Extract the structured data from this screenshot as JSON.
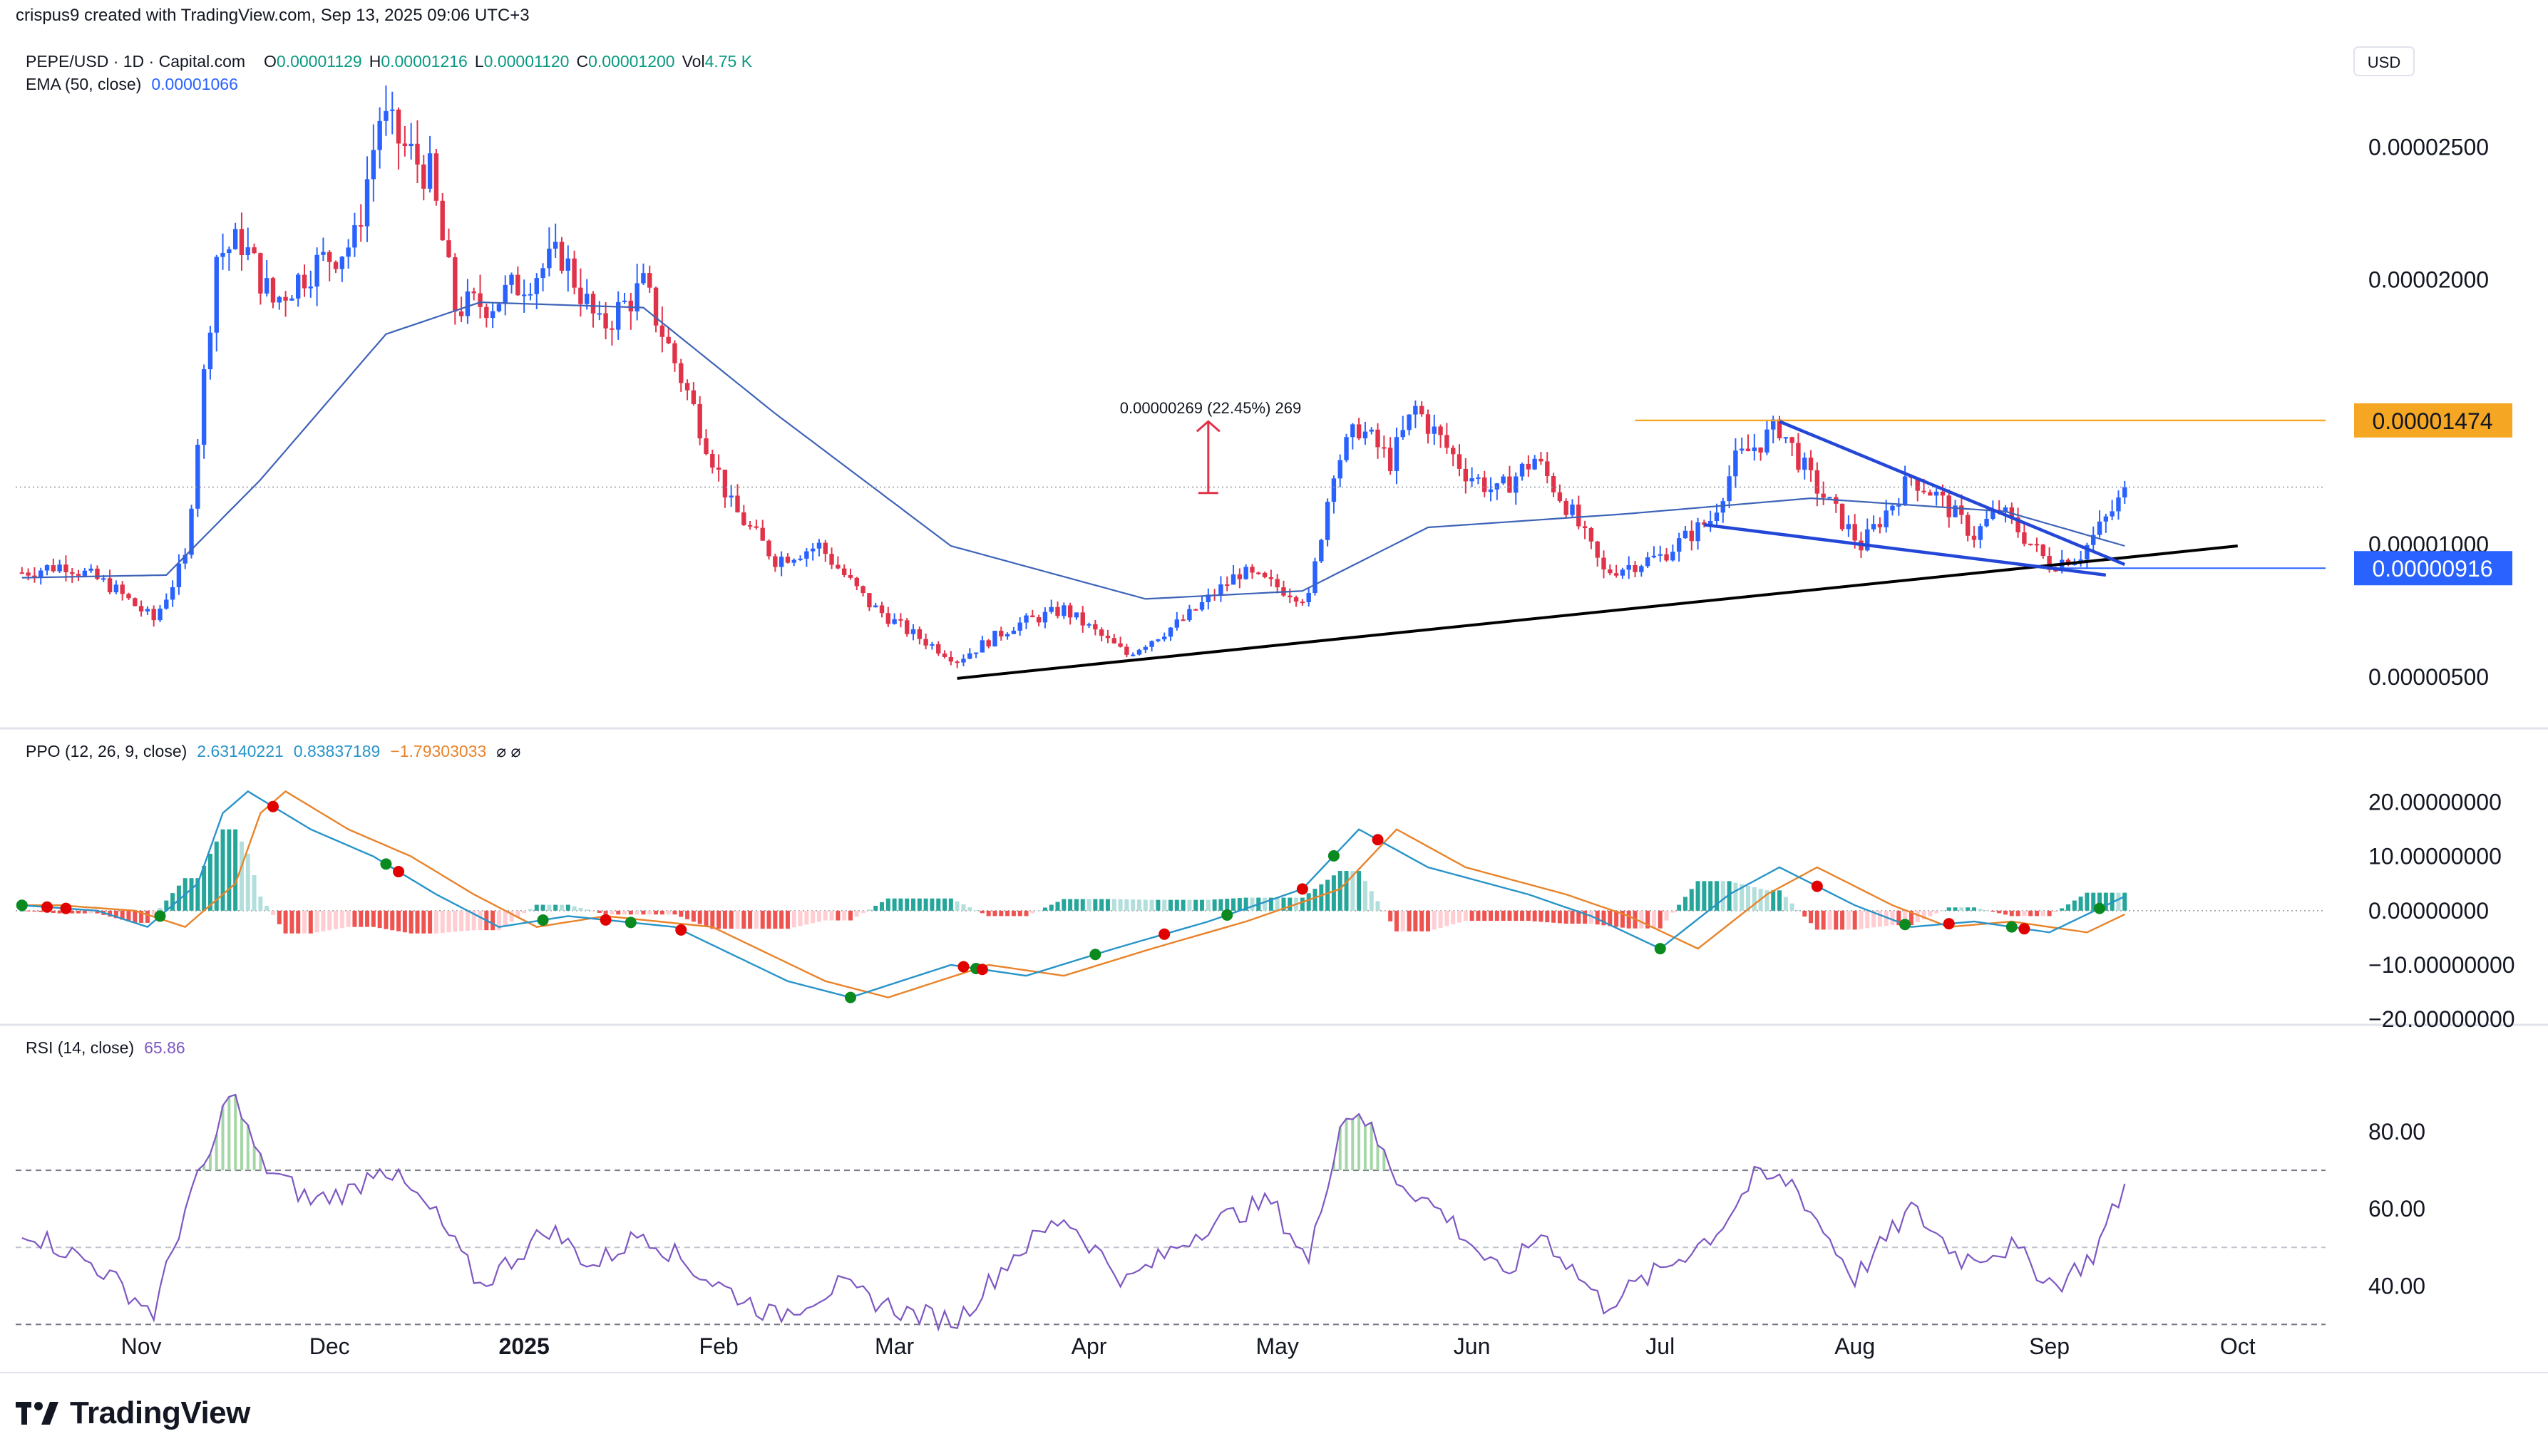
{
  "header": {
    "created_by": "crispus9 created with TradingView.com, Sep 13, 2025 09:06 UTC+3"
  },
  "symbol": {
    "name": "PEPE/USD · 1D · Capital.com",
    "o_label": "O",
    "o": "0.00001129",
    "h_label": "H",
    "h": "0.00001216",
    "l_label": "L",
    "l": "0.00001120",
    "c_label": "C",
    "c": "0.00001200",
    "vol_label": "Vol",
    "vol": "4.75 K"
  },
  "ema": {
    "label": "EMA (50, close)",
    "value": "0.00001066"
  },
  "currency": "USD",
  "price_axis": {
    "ticks": [
      "0.00002500",
      "0.00002000",
      "0.00001000",
      "0.00000500"
    ],
    "tick_values": [
      2.5e-05,
      2e-05,
      1e-05,
      5e-06
    ],
    "badge_resistance": "0.00001474",
    "badge_support": "0.00000916"
  },
  "measure": {
    "label": "0.00000269 (22.45%) 269"
  },
  "ppo": {
    "label": "PPO (12, 26, 9, close)",
    "v1": "2.63140221",
    "v2": "0.83837189",
    "v3": "−1.79303033",
    "ticks": [
      "20.00000000",
      "10.00000000",
      "0.00000000",
      "−10.00000000",
      "−20.00000000"
    ]
  },
  "rsi": {
    "label": "RSI (14, close)",
    "value": "65.86",
    "ticks": [
      "80.00",
      "60.00",
      "40.00"
    ]
  },
  "time_axis": [
    "Nov",
    "Dec",
    "2025",
    "Feb",
    "Mar",
    "Apr",
    "May",
    "Jun",
    "Jul",
    "Aug",
    "Sep",
    "Oct"
  ],
  "brand": "TradingView",
  "colors": {
    "up": "#2962ff",
    "down": "#e0334a",
    "ema": "#3d63b8",
    "ppo_line": "#2894c8",
    "signal": "#e8832a",
    "rsi": "#7e57c2",
    "resistance": "#f5a623",
    "support_badge": "#2962ff"
  },
  "chart_data": {
    "type": "candlestick",
    "title": "PEPE/USD · 1D · Capital.com",
    "anchors": [
      [
        "2024-10-13",
        9e-06
      ],
      [
        "2024-10-20",
        9.3e-06
      ],
      [
        "2024-10-27",
        8.5e-06
      ],
      [
        "2024-11-03",
        7.2e-06
      ],
      [
        "2024-11-08",
        9.5e-06
      ],
      [
        "2024-11-13",
        2.1e-05
      ],
      [
        "2024-11-17",
        2.15e-05
      ],
      [
        "2024-11-22",
        1.92e-05
      ],
      [
        "2024-11-28",
        2.05e-05
      ],
      [
        "2024-12-05",
        2.15e-05
      ],
      [
        "2024-12-09",
        2.62e-05
      ],
      [
        "2024-12-13",
        2.5e-05
      ],
      [
        "2024-12-17",
        2.4e-05
      ],
      [
        "2024-12-21",
        1.9e-05
      ],
      [
        "2024-12-27",
        1.92e-05
      ],
      [
        "2025-01-04",
        2.05e-05
      ],
      [
        "2025-01-07",
        2.1e-05
      ],
      [
        "2025-01-13",
        1.82e-05
      ],
      [
        "2025-01-20",
        1.98e-05
      ],
      [
        "2025-01-27",
        1.58e-05
      ],
      [
        "2025-02-03",
        1.15e-05
      ],
      [
        "2025-02-10",
        9.5e-06
      ],
      [
        "2025-02-17",
        1e-05
      ],
      [
        "2025-02-25",
        7.8e-06
      ],
      [
        "2025-03-03",
        6.8e-06
      ],
      [
        "2025-03-11",
        5.7e-06
      ],
      [
        "2025-03-20",
        7e-06
      ],
      [
        "2025-03-28",
        7.6e-06
      ],
      [
        "2025-04-07",
        5.9e-06
      ],
      [
        "2025-04-16",
        7.2e-06
      ],
      [
        "2025-04-25",
        9e-06
      ],
      [
        "2025-05-06",
        8e-06
      ],
      [
        "2025-05-10",
        1.3e-05
      ],
      [
        "2025-05-14",
        1.45e-05
      ],
      [
        "2025-05-19",
        1.32e-05
      ],
      [
        "2025-05-23",
        1.52e-05
      ],
      [
        "2025-05-31",
        1.28e-05
      ],
      [
        "2025-06-05",
        1.2e-05
      ],
      [
        "2025-06-11",
        1.33e-05
      ],
      [
        "2025-06-17",
        1.12e-05
      ],
      [
        "2025-06-22",
        9e-06
      ],
      [
        "2025-07-01",
        9.6e-06
      ],
      [
        "2025-07-09",
        1.1e-05
      ],
      [
        "2025-07-13",
        1.32e-05
      ],
      [
        "2025-07-20",
        1.45e-05
      ],
      [
        "2025-07-25",
        1.25e-05
      ],
      [
        "2025-08-02",
        1e-05
      ],
      [
        "2025-08-10",
        1.26e-05
      ],
      [
        "2025-08-14",
        1.19e-05
      ],
      [
        "2025-08-20",
        1.04e-05
      ],
      [
        "2025-08-24",
        1.14e-05
      ],
      [
        "2025-09-01",
        9.3e-06
      ],
      [
        "2025-09-06",
        9.7e-06
      ],
      [
        "2025-09-10",
        1.1e-05
      ],
      [
        "2025-09-13",
        1.2e-05
      ]
    ],
    "ema_anchors": [
      [
        "2024-10-13",
        8.8e-06
      ],
      [
        "2024-11-05",
        8.9e-06
      ],
      [
        "2024-11-20",
        1.25e-05
      ],
      [
        "2024-12-10",
        1.8e-05
      ],
      [
        "2024-12-25",
        1.92e-05
      ],
      [
        "2025-01-20",
        1.9e-05
      ],
      [
        "2025-02-10",
        1.5e-05
      ],
      [
        "2025-03-10",
        1e-05
      ],
      [
        "2025-04-10",
        8e-06
      ],
      [
        "2025-05-05",
        8.3e-06
      ],
      [
        "2025-05-25",
        1.07e-05
      ],
      [
        "2025-06-25",
        1.12e-05
      ],
      [
        "2025-07-25",
        1.18e-05
      ],
      [
        "2025-08-25",
        1.13e-05
      ],
      [
        "2025-09-13",
        1e-05
      ]
    ],
    "resistance_level": 1.474e-05,
    "support_level": 9.16e-06,
    "trendline": [
      [
        "2025-03-11",
        5e-06
      ],
      [
        "2025-10-01",
        1e-05
      ]
    ],
    "wedge_upper": [
      [
        "2025-07-20",
        1.47e-05
      ],
      [
        "2025-09-13",
        9.3e-06
      ]
    ],
    "wedge_lower": [
      [
        "2025-07-08",
        1.08e-05
      ],
      [
        "2025-09-10",
        8.9e-06
      ]
    ],
    "measure_arrow": [
      [
        "2025-04-20",
        1.2e-05
      ],
      [
        "2025-04-20",
        1.47e-05
      ]
    ],
    "ylim": [
      3.3e-06,
      2.9e-05
    ],
    "xlim": [
      "2024-10-12",
      "2025-10-15"
    ],
    "ppo_anchors": [
      [
        "2024-10-13",
        1
      ],
      [
        "2024-10-25",
        0
      ],
      [
        "2024-11-02",
        -3
      ],
      [
        "2024-11-10",
        5
      ],
      [
        "2024-11-14",
        18
      ],
      [
        "2024-11-18",
        22
      ],
      [
        "2024-11-28",
        15
      ],
      [
        "2024-12-08",
        10
      ],
      [
        "2024-12-18",
        3
      ],
      [
        "2024-12-28",
        -3
      ],
      [
        "2025-01-08",
        -1
      ],
      [
        "2025-01-25",
        -3
      ],
      [
        "2025-02-12",
        -13
      ],
      [
        "2025-02-22",
        -16
      ],
      [
        "2025-03-10",
        -10
      ],
      [
        "2025-03-22",
        -12
      ],
      [
        "2025-04-05",
        -7
      ],
      [
        "2025-04-20",
        -2
      ],
      [
        "2025-05-05",
        4
      ],
      [
        "2025-05-14",
        15
      ],
      [
        "2025-05-25",
        8
      ],
      [
        "2025-06-10",
        3
      ],
      [
        "2025-06-20",
        -1
      ],
      [
        "2025-07-01",
        -7
      ],
      [
        "2025-07-12",
        3
      ],
      [
        "2025-07-20",
        8
      ],
      [
        "2025-08-01",
        1
      ],
      [
        "2025-08-10",
        -3
      ],
      [
        "2025-08-20",
        -2
      ],
      [
        "2025-09-01",
        -4
      ],
      [
        "2025-09-13",
        2.63
      ]
    ],
    "rsi_anchors": [
      [
        "2024-10-13",
        55
      ],
      [
        "2024-10-25",
        45
      ],
      [
        "2024-11-03",
        33
      ],
      [
        "2024-11-08",
        60
      ],
      [
        "2024-11-13",
        78
      ],
      [
        "2024-11-15",
        92
      ],
      [
        "2024-11-20",
        72
      ],
      [
        "2024-11-28",
        62
      ],
      [
        "2024-12-05",
        65
      ],
      [
        "2024-12-09",
        72
      ],
      [
        "2024-12-18",
        58
      ],
      [
        "2024-12-25",
        40
      ],
      [
        "2025-01-05",
        55
      ],
      [
        "2025-01-12",
        45
      ],
      [
        "2025-01-20",
        54
      ],
      [
        "2025-01-30",
        42
      ],
      [
        "2025-02-10",
        32
      ],
      [
        "2025-02-20",
        40
      ],
      [
        "2025-03-03",
        33
      ],
      [
        "2025-03-11",
        31
      ],
      [
        "2025-03-20",
        48
      ],
      [
        "2025-03-28",
        58
      ],
      [
        "2025-04-07",
        41
      ],
      [
        "2025-04-20",
        56
      ],
      [
        "2025-04-30",
        62
      ],
      [
        "2025-05-06",
        46
      ],
      [
        "2025-05-11",
        82
      ],
      [
        "2025-05-14",
        86
      ],
      [
        "2025-05-20",
        68
      ],
      [
        "2025-05-28",
        58
      ],
      [
        "2025-06-06",
        42
      ],
      [
        "2025-06-12",
        54
      ],
      [
        "2025-06-22",
        35
      ],
      [
        "2025-07-01",
        44
      ],
      [
        "2025-07-10",
        54
      ],
      [
        "2025-07-16",
        68
      ],
      [
        "2025-07-22",
        67
      ],
      [
        "2025-08-01",
        42
      ],
      [
        "2025-08-10",
        60
      ],
      [
        "2025-08-18",
        47
      ],
      [
        "2025-08-26",
        50
      ],
      [
        "2025-09-02",
        40
      ],
      [
        "2025-09-08",
        48
      ],
      [
        "2025-09-13",
        65.86
      ]
    ],
    "rsi_levels": [
      70,
      50,
      30
    ],
    "rsi_ylim": [
      26,
      100
    ],
    "ppo_ylim": [
      -20,
      26
    ],
    "markers": {
      "green": [
        "2024-10-13",
        "2024-11-04",
        "2024-12-10",
        "2025-01-04",
        "2025-01-18",
        "2025-02-22",
        "2025-03-14",
        "2025-04-02",
        "2025-04-23",
        "2025-05-10",
        "2025-07-01",
        "2025-08-09",
        "2025-08-26",
        "2025-09-09"
      ],
      "red": [
        "2024-10-17",
        "2024-10-20",
        "2024-11-22",
        "2024-12-12",
        "2025-01-14",
        "2025-01-26",
        "2025-03-12",
        "2025-03-15",
        "2025-04-13",
        "2025-05-05",
        "2025-05-17",
        "2025-07-26",
        "2025-08-16",
        "2025-08-28"
      ]
    }
  }
}
